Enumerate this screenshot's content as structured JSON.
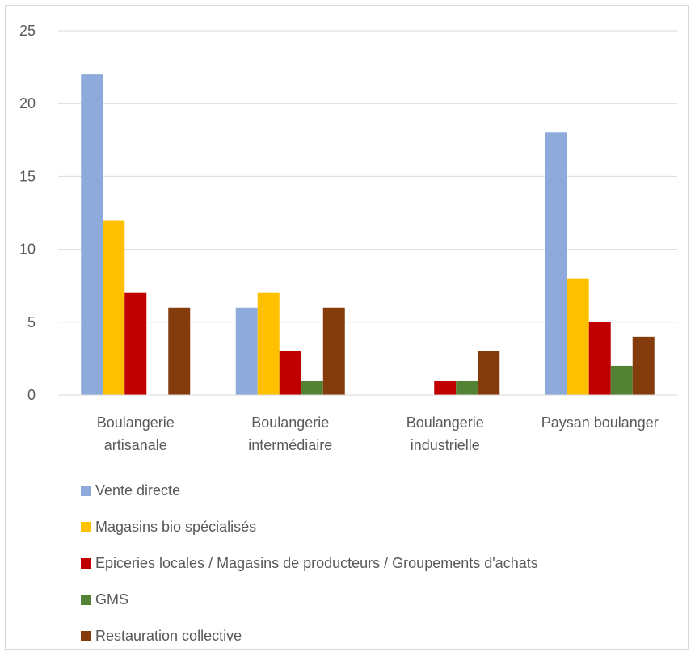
{
  "chart_data": {
    "type": "bar",
    "categories": [
      [
        "Boulangerie",
        "artisanale"
      ],
      [
        "Boulangerie",
        "intermédiaire"
      ],
      [
        "Boulangerie",
        "industrielle"
      ],
      [
        "Paysan boulanger"
      ]
    ],
    "series": [
      {
        "name": "Vente directe",
        "color": "#8eaadb",
        "values": [
          22,
          6,
          0,
          18
        ]
      },
      {
        "name": "Magasins bio spécialisés",
        "color": "#ffc000",
        "values": [
          12,
          7,
          0,
          8
        ]
      },
      {
        "name": "Epiceries locales / Magasins de producteurs / Groupements d'achats",
        "color": "#c00000",
        "values": [
          7,
          3,
          1,
          5
        ]
      },
      {
        "name": "GMS",
        "color": "#548235",
        "values": [
          0,
          1,
          1,
          2
        ]
      },
      {
        "name": "Restauration collective",
        "color": "#843c0c",
        "values": [
          6,
          6,
          3,
          4
        ]
      }
    ],
    "ylim": [
      0,
      25
    ],
    "yticks": [
      0,
      5,
      10,
      15,
      20,
      25
    ],
    "grid": true,
    "legend_position": "bottom"
  }
}
